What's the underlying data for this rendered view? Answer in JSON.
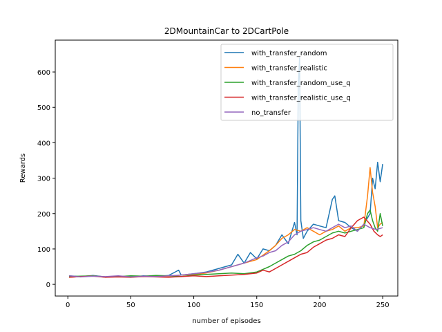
{
  "chart_data": {
    "type": "line",
    "title": "2DMountainCar to 2DCartPole",
    "xlabel": "number of episodes",
    "ylabel": "Rewards",
    "xlim": [
      -10,
      262
    ],
    "ylim": [
      -33,
      690
    ],
    "xticks": [
      0,
      50,
      100,
      150,
      200,
      250
    ],
    "yticks": [
      0,
      100,
      200,
      300,
      400,
      500,
      600
    ],
    "grid": false,
    "legend_position": "top-right",
    "series": [
      {
        "name": "with_transfer_random",
        "color": "#1f77b4",
        "x": [
          1,
          10,
          20,
          30,
          40,
          50,
          60,
          70,
          80,
          88,
          90,
          100,
          110,
          120,
          130,
          135,
          140,
          145,
          150,
          155,
          160,
          165,
          170,
          175,
          180,
          182,
          183,
          184,
          185,
          187,
          190,
          195,
          200,
          205,
          210,
          212,
          215,
          220,
          225,
          230,
          235,
          240,
          242,
          244,
          246,
          248,
          250
        ],
        "y": [
          24,
          22,
          25,
          21,
          23,
          20,
          24,
          22,
          25,
          40,
          26,
          30,
          35,
          45,
          55,
          85,
          60,
          90,
          72,
          100,
          95,
          110,
          140,
          115,
          175,
          140,
          560,
          640,
          180,
          130,
          150,
          170,
          165,
          160,
          240,
          250,
          180,
          175,
          160,
          150,
          170,
          200,
          300,
          270,
          345,
          290,
          340
        ]
      },
      {
        "name": "with_transfer_realistic",
        "color": "#ff7f0e",
        "x": [
          1,
          10,
          20,
          30,
          40,
          50,
          60,
          70,
          80,
          90,
          100,
          110,
          120,
          130,
          140,
          150,
          160,
          165,
          170,
          175,
          180,
          185,
          190,
          195,
          200,
          205,
          210,
          215,
          220,
          225,
          230,
          235,
          238,
          240,
          242,
          244,
          246,
          248,
          250
        ],
        "y": [
          20,
          22,
          24,
          20,
          23,
          21,
          22,
          24,
          23,
          26,
          28,
          32,
          40,
          50,
          60,
          70,
          95,
          110,
          130,
          140,
          155,
          150,
          160,
          150,
          140,
          150,
          155,
          165,
          150,
          160,
          160,
          165,
          250,
          330,
          260,
          220,
          160,
          170,
          175
        ]
      },
      {
        "name": "with_transfer_random_use_q",
        "color": "#2ca02c",
        "x": [
          1,
          10,
          20,
          30,
          40,
          50,
          60,
          70,
          80,
          90,
          100,
          110,
          120,
          130,
          140,
          150,
          160,
          165,
          170,
          175,
          180,
          185,
          190,
          195,
          200,
          205,
          210,
          215,
          220,
          225,
          230,
          235,
          238,
          240,
          242,
          244,
          246,
          248,
          250
        ],
        "y": [
          22,
          23,
          24,
          21,
          22,
          24,
          23,
          25,
          24,
          22,
          26,
          28,
          30,
          32,
          30,
          35,
          50,
          60,
          70,
          80,
          85,
          95,
          110,
          120,
          125,
          135,
          145,
          150,
          145,
          150,
          155,
          160,
          200,
          210,
          180,
          160,
          150,
          200,
          165
        ]
      },
      {
        "name": "with_transfer_realistic_use_q",
        "color": "#d62728",
        "x": [
          1,
          10,
          20,
          30,
          40,
          50,
          60,
          70,
          80,
          90,
          100,
          110,
          120,
          130,
          140,
          150,
          155,
          160,
          165,
          170,
          175,
          180,
          185,
          190,
          195,
          200,
          205,
          210,
          215,
          220,
          225,
          230,
          235,
          240,
          243,
          246,
          248,
          250
        ],
        "y": [
          20,
          22,
          23,
          20,
          21,
          20,
          22,
          21,
          20,
          22,
          24,
          22,
          24,
          26,
          28,
          32,
          40,
          35,
          45,
          55,
          65,
          75,
          85,
          90,
          105,
          115,
          125,
          130,
          140,
          135,
          160,
          180,
          190,
          170,
          150,
          140,
          135,
          140
        ]
      },
      {
        "name": "no_transfer",
        "color": "#9467bd",
        "x": [
          1,
          10,
          20,
          30,
          40,
          50,
          60,
          70,
          80,
          90,
          100,
          110,
          120,
          130,
          140,
          150,
          155,
          160,
          165,
          170,
          175,
          180,
          185,
          190,
          195,
          200,
          205,
          210,
          215,
          220,
          225,
          230,
          235,
          240,
          245,
          250
        ],
        "y": [
          24,
          21,
          23,
          22,
          24,
          21,
          23,
          22,
          24,
          26,
          30,
          34,
          40,
          50,
          60,
          75,
          80,
          90,
          95,
          110,
          120,
          140,
          150,
          155,
          160,
          155,
          150,
          160,
          170,
          160,
          165,
          150,
          170,
          160,
          155,
          160
        ]
      }
    ]
  }
}
